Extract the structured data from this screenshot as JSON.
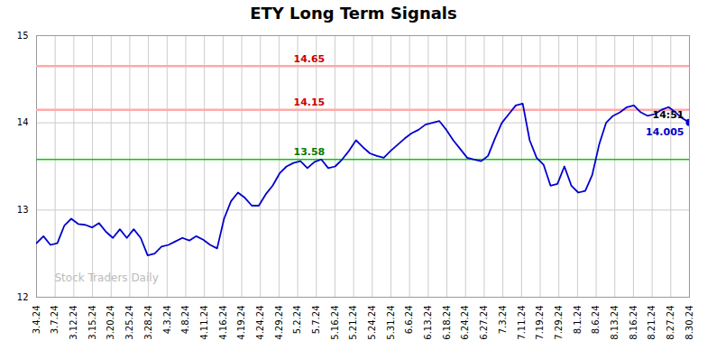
{
  "chart_data": {
    "type": "line",
    "title": "ETY Long Term Signals",
    "x": [
      0,
      1,
      2,
      3,
      4,
      5,
      6,
      7,
      8,
      9,
      10,
      11,
      12,
      13,
      14,
      15,
      16,
      17,
      18,
      19,
      20,
      21,
      22,
      23,
      24,
      25,
      26,
      27,
      28,
      29,
      30,
      31,
      32,
      33,
      34,
      35,
      36,
      37,
      38,
      39,
      40,
      41,
      42,
      43,
      44,
      45,
      46,
      47,
      48,
      49,
      50,
      51,
      52,
      53,
      54,
      55,
      56,
      57,
      58,
      59,
      60,
      61,
      62,
      63,
      64,
      65,
      66,
      67,
      68,
      69,
      70,
      71,
      72,
      73,
      74,
      75,
      76,
      77,
      78,
      79,
      80,
      81,
      82,
      83,
      84,
      85,
      86,
      87,
      88,
      89,
      90,
      91,
      92,
      93,
      94
    ],
    "values": [
      12.62,
      12.7,
      12.6,
      12.62,
      12.82,
      12.9,
      12.84,
      12.83,
      12.8,
      12.85,
      12.75,
      12.68,
      12.78,
      12.68,
      12.78,
      12.68,
      12.48,
      12.5,
      12.58,
      12.6,
      12.64,
      12.68,
      12.65,
      12.7,
      12.66,
      12.6,
      12.56,
      12.9,
      13.1,
      13.2,
      13.14,
      13.05,
      13.05,
      13.18,
      13.28,
      13.42,
      13.5,
      13.54,
      13.56,
      13.48,
      13.55,
      13.58,
      13.48,
      13.5,
      13.58,
      13.68,
      13.8,
      13.72,
      13.65,
      13.62,
      13.6,
      13.68,
      13.75,
      13.82,
      13.88,
      13.92,
      13.98,
      14.0,
      14.02,
      13.92,
      13.8,
      13.7,
      13.6,
      13.58,
      13.56,
      13.62,
      13.82,
      14.0,
      14.1,
      14.2,
      14.22,
      13.8,
      13.6,
      13.52,
      13.28,
      13.3,
      13.5,
      13.28,
      13.2,
      13.22,
      13.4,
      13.75,
      14.0,
      14.08,
      14.12,
      14.18,
      14.2,
      14.12,
      14.08,
      14.1,
      14.15,
      14.18,
      14.12,
      14.05,
      14.005
    ],
    "color": "#0000cc",
    "xlim": [
      0,
      94
    ],
    "xticks": [
      {
        "value": 0,
        "label": "3.4.24"
      },
      {
        "value": 2.685714285714286,
        "label": "3.7.24"
      },
      {
        "value": 5.371428571428571,
        "label": "3.12.24"
      },
      {
        "value": 8.057142857142857,
        "label": "3.15.24"
      },
      {
        "value": 10.742857142857142,
        "label": "3.20.24"
      },
      {
        "value": 13.428571428571429,
        "label": "3.25.24"
      },
      {
        "value": 16.114285714285714,
        "label": "3.28.24"
      },
      {
        "value": 18.8,
        "label": "4.3.24"
      },
      {
        "value": 21.485714285714284,
        "label": "4.8.24"
      },
      {
        "value": 24.17142857142857,
        "label": "4.11.24"
      },
      {
        "value": 26.857142857142858,
        "label": "4.16.24"
      },
      {
        "value": 29.542857142857144,
        "label": "4.19.24"
      },
      {
        "value": 32.22857142857143,
        "label": "4.24.24"
      },
      {
        "value": 34.91428571428571,
        "label": "4.29.24"
      },
      {
        "value": 37.6,
        "label": "5.2.24"
      },
      {
        "value": 40.285714285714285,
        "label": "5.7.24"
      },
      {
        "value": 42.97142857142857,
        "label": "5.16.24"
      },
      {
        "value": 45.65714285714286,
        "label": "5.21.24"
      },
      {
        "value": 48.34285714285714,
        "label": "5.24.24"
      },
      {
        "value": 51.02857142857143,
        "label": "5.31.24"
      },
      {
        "value": 53.714285714285715,
        "label": "6.6.24"
      },
      {
        "value": 56.4,
        "label": "6.13.24"
      },
      {
        "value": 59.08571428571429,
        "label": "6.18.24"
      },
      {
        "value": 61.77142857142857,
        "label": "6.24.24"
      },
      {
        "value": 64.45714285714286,
        "label": "6.27.24"
      },
      {
        "value": 67.14285714285714,
        "label": "7.3.24"
      },
      {
        "value": 69.82857142857142,
        "label": "7.11.24"
      },
      {
        "value": 72.51428571428572,
        "label": "7.19.24"
      },
      {
        "value": 75.2,
        "label": "7.29.24"
      },
      {
        "value": 77.88571428571429,
        "label": "8.1.24"
      },
      {
        "value": 80.57142857142857,
        "label": "8.6.24"
      },
      {
        "value": 83.25714285714285,
        "label": "8.13.24"
      },
      {
        "value": 85.94285714285714,
        "label": "8.16.24"
      },
      {
        "value": 88.62857142857143,
        "label": "8.21.24"
      },
      {
        "value": 91.31428571428572,
        "label": "8.27.24"
      },
      {
        "value": 94,
        "label": "8.30.24"
      }
    ],
    "ylim": [
      12,
      15
    ],
    "yticks": [
      12,
      13,
      14,
      15
    ],
    "grid": true,
    "hlines": [
      {
        "value": 13.58,
        "color": "#00cc00"
      },
      {
        "value": 14.15,
        "color": "#ffaaaa"
      },
      {
        "value": 14.65,
        "color": "#ffaaaa"
      }
    ],
    "last_point": {
      "x": 94,
      "y": 14.005,
      "color": "#0000cc",
      "marker": "o"
    },
    "annotations": [
      {
        "text": "14.65",
        "x": 37,
        "y": 14.65,
        "color": "#cc0000",
        "position": "above"
      },
      {
        "text": "14.15",
        "x": 37,
        "y": 14.15,
        "color": "#cc0000",
        "position": "above"
      },
      {
        "text": "13.58",
        "x": 37,
        "y": 13.58,
        "color": "#007700",
        "position": "above"
      },
      {
        "text": "14:51",
        "x": 94,
        "y": 14.005,
        "color": "#000000",
        "position": "above-left"
      },
      {
        "text": "14.005",
        "x": 94,
        "y": 14.005,
        "color": "#0000cc",
        "position": "below-left"
      },
      {
        "text": "Stock Traders Daily",
        "color": "#bbbbbb",
        "position": "watermark"
      }
    ]
  }
}
